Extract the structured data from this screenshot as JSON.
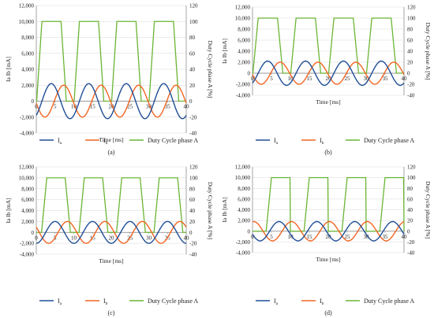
{
  "colors": {
    "ia": "#1f4e96",
    "ib": "#f26522",
    "duty": "#6ab533",
    "grid": "#d9d9d9",
    "axis": "#7f7f7f"
  },
  "chart_data": [
    {
      "type": "line",
      "label": "(a)",
      "xlabel": "Time [ms]",
      "ylabel": "Ia Ib [mA]",
      "y2label": "Duty Cycle phase A [%]",
      "xlim": [
        0,
        40
      ],
      "ylim": [
        -4000,
        12000
      ],
      "y2lim": [
        -40,
        120
      ],
      "xticks": [
        "0",
        "5",
        "10",
        "15",
        "20",
        "25",
        "30",
        "35",
        "40"
      ],
      "yticks": [
        "-4,000",
        "-2,000",
        "0",
        "2,000",
        "4,000",
        "6,000",
        "8,000",
        "10,000",
        "12,000"
      ],
      "y2ticks": [
        "-40",
        "-20",
        "0",
        "20",
        "40",
        "60",
        "80",
        "100",
        "120"
      ],
      "grid": true,
      "legend_position": "bottom",
      "series": [
        {
          "name": "Ia",
          "sub": "a",
          "amplitude_mA": 2200,
          "period_ms": 10,
          "peak_ms": 4
        },
        {
          "name": "Ib",
          "sub": "b",
          "amplitude_mA": 2000,
          "period_ms": 10,
          "peak_ms": 7.3
        },
        {
          "name": "Duty Cycle phase A",
          "axis": "right",
          "max_pct": 100,
          "min_pct": 0,
          "high_start_ms": 1.5,
          "high_end_ms": 6.6,
          "period_ms": 10
        }
      ]
    },
    {
      "type": "line",
      "label": "(b)",
      "xlabel": "Time [ms]",
      "ylabel": "Ia Ib [mA]",
      "y2label": "Duty Cycle phase A [%]",
      "xlim": [
        0,
        40
      ],
      "ylim": [
        -4000,
        12000
      ],
      "y2lim": [
        -40,
        120
      ],
      "xticks": [
        "0",
        "5",
        "10",
        "15",
        "20",
        "25",
        "30",
        "35",
        "40"
      ],
      "yticks": [
        "-4,000",
        "-2,000",
        "0",
        "2,000",
        "4,000",
        "6,000",
        "8,000",
        "10,000",
        "12,000"
      ],
      "y2ticks": [
        "-40",
        "-20",
        "0",
        "20",
        "40",
        "60",
        "80",
        "100",
        "120"
      ],
      "grid": true,
      "legend_position": "bottom",
      "series": [
        {
          "name": "Ia",
          "sub": "a",
          "amplitude_mA": 2200,
          "period_ms": 10,
          "peak_ms": 4
        },
        {
          "name": "Ib",
          "sub": "b",
          "amplitude_mA": 2000,
          "period_ms": 10,
          "peak_ms": 7.3
        },
        {
          "name": "Duty Cycle phase A",
          "axis": "right",
          "max_pct": 100,
          "min_pct": 0,
          "high_start_ms": 1.5,
          "high_end_ms": 6.6,
          "period_ms": 10
        }
      ]
    },
    {
      "type": "line",
      "label": "(c)",
      "xlabel": "Time [ms]",
      "ylabel": "Ia Ib [mA]",
      "y2label": "Duty Cycle phase A [%]",
      "xlim": [
        0,
        40
      ],
      "ylim": [
        -4000,
        12000
      ],
      "y2lim": [
        -40,
        120
      ],
      "xticks": [
        "0",
        "5",
        "10",
        "15",
        "20",
        "25",
        "30",
        "35",
        "40"
      ],
      "yticks": [
        "-4,000",
        "-2,000",
        "0",
        "2,000",
        "4,000",
        "6,000",
        "8,000",
        "10,000",
        "12,000"
      ],
      "y2ticks": [
        "-40",
        "-20",
        "0",
        "20",
        "40",
        "60",
        "80",
        "100",
        "120"
      ],
      "grid": true,
      "legend_position": "bottom",
      "series": [
        {
          "name": "Ia",
          "sub": "a",
          "amplitude_mA": 2000,
          "period_ms": 10,
          "peak_ms": 5
        },
        {
          "name": "Ib",
          "sub": "b",
          "amplitude_mA": 2000,
          "period_ms": 10,
          "peak_ms": 8.3
        },
        {
          "name": "Duty Cycle phase A",
          "axis": "right",
          "max_pct": 100,
          "min_pct": 0,
          "high_start_ms": 2.8,
          "high_end_ms": 7.7,
          "period_ms": 10
        }
      ]
    },
    {
      "type": "line",
      "label": "(d)",
      "xlabel": "Time [ms]",
      "ylabel": "Ia Ib [mA]",
      "y2label": "Duty Cycle phase A [%]",
      "xlim": [
        0,
        40
      ],
      "ylim": [
        -4000,
        12000
      ],
      "y2lim": [
        -40,
        120
      ],
      "xticks": [
        "0",
        "5",
        "10",
        "15",
        "20",
        "25",
        "30",
        "35",
        "40"
      ],
      "yticks": [
        "-4,000",
        "-2,000",
        "0",
        "2,000",
        "4,000",
        "6,000",
        "8,000",
        "10,000",
        "12,000"
      ],
      "y2ticks": [
        "-40",
        "-20",
        "0",
        "20",
        "40",
        "60",
        "80",
        "100",
        "120"
      ],
      "grid": true,
      "legend_position": "bottom",
      "series": [
        {
          "name": "Ia",
          "sub": "a",
          "amplitude_mA": 1800,
          "period_ms": 10,
          "peak_ms": 7
        },
        {
          "name": "Ib",
          "sub": "b",
          "amplitude_mA": 1800,
          "period_ms": 10,
          "peak_ms": 0.3
        },
        {
          "name": "Duty Cycle phase A",
          "axis": "right",
          "max_pct": 100,
          "min_pct": 0,
          "high_start_ms": 5,
          "high_end_ms": 10,
          "period_ms": 10
        }
      ]
    }
  ]
}
